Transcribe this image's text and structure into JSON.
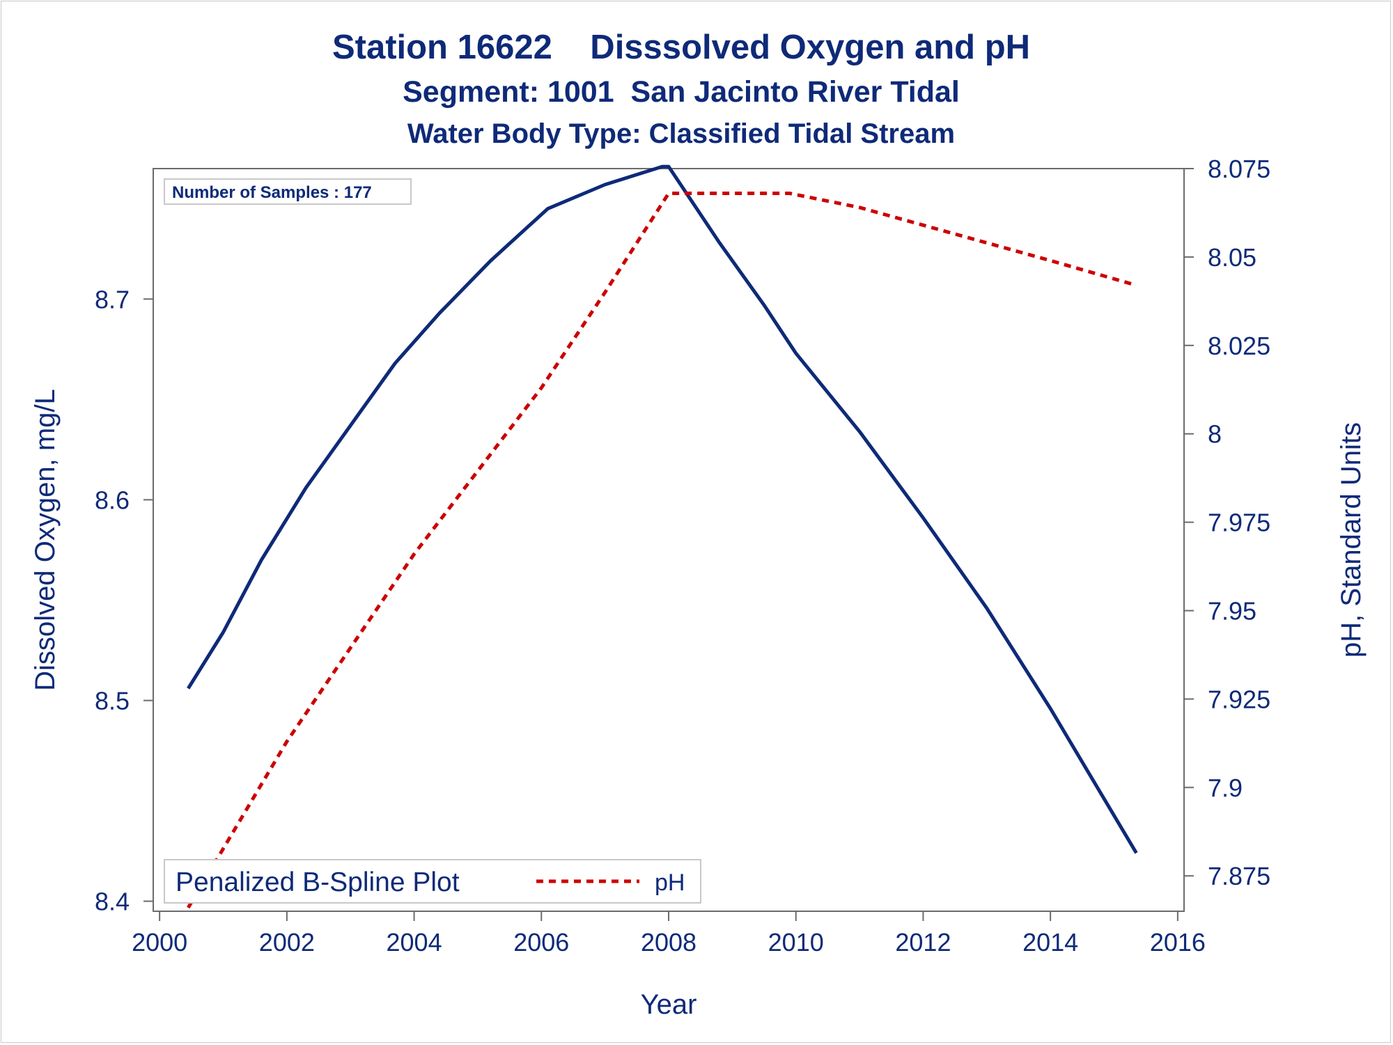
{
  "chart_data": {
    "type": "line",
    "title": "Station 16622    Disssolved Oxygen and pH",
    "subtitle": "Segment: 1001  San Jacinto River Tidal",
    "subtitle2": "Water Body Type: Classified Tidal Stream",
    "xlabel": "Year",
    "ylabel_left": "Dissolved Oxygen, mg/L",
    "ylabel_right": "pH, Standard Units",
    "xlim": [
      1999.9,
      2016.1
    ],
    "ylim_left": [
      8.395,
      8.765
    ],
    "ylim_right": [
      7.865,
      8.075
    ],
    "x_ticks": [
      2000,
      2002,
      2004,
      2006,
      2008,
      2010,
      2012,
      2014,
      2016
    ],
    "y_left_ticks": [
      "8.4",
      "8.5",
      "8.6",
      "8.7"
    ],
    "y_right_ticks": [
      "7.875",
      "7.9",
      "7.925",
      "7.95",
      "7.975",
      "8",
      "8.025",
      "8.05",
      "8.075"
    ],
    "inset_label": "Number of Samples : 177",
    "legend_label": "Penalized B-Spline Plot",
    "legend_position": "bottom-left",
    "grid": false,
    "colors": {
      "text": "#0e2a78",
      "do_line": "#0e2a78",
      "ph_line": "#cc0000",
      "axis": "#6b6b6b"
    },
    "series": [
      {
        "axis": "left",
        "style": "solid",
        "points": [
          [
            2000.45,
            8.506
          ],
          [
            2001.0,
            8.534
          ],
          [
            2001.6,
            8.57
          ],
          [
            2002.3,
            8.606
          ],
          [
            2003.0,
            8.637
          ],
          [
            2003.7,
            8.668
          ],
          [
            2004.4,
            8.693
          ],
          [
            2005.2,
            8.719
          ],
          [
            2006.1,
            8.745
          ],
          [
            2007.0,
            8.757
          ],
          [
            2007.9,
            8.766
          ],
          [
            2008.0,
            8.766
          ],
          [
            2008.8,
            8.728
          ],
          [
            2009.5,
            8.697
          ],
          [
            2010.0,
            8.673
          ],
          [
            2011.0,
            8.634
          ],
          [
            2012.0,
            8.591
          ],
          [
            2013.0,
            8.546
          ],
          [
            2014.0,
            8.496
          ],
          [
            2015.35,
            8.424
          ]
        ]
      },
      {
        "name": "pH",
        "axis": "right",
        "style": "dashed",
        "points": [
          [
            2000.45,
            7.866
          ],
          [
            2002.0,
            7.913
          ],
          [
            2004.0,
            7.966
          ],
          [
            2006.0,
            8.013
          ],
          [
            2007.0,
            8.04
          ],
          [
            2008.0,
            8.068
          ],
          [
            2009.0,
            8.068
          ],
          [
            2009.9,
            8.068
          ],
          [
            2011.0,
            8.064
          ],
          [
            2012.0,
            8.059
          ],
          [
            2013.0,
            8.054
          ],
          [
            2014.0,
            8.049
          ],
          [
            2015.35,
            8.042
          ]
        ]
      }
    ]
  }
}
